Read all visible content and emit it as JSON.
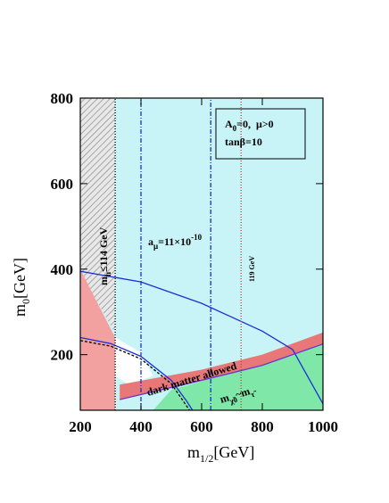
{
  "chart_data": {
    "type": "region",
    "xlabel": [
      "m",
      "1/2",
      "[GeV]"
    ],
    "ylabel": [
      "m",
      "0",
      "[GeV]"
    ],
    "xlim": [
      200,
      1000
    ],
    "xticks": [
      200,
      400,
      600,
      800,
      1000
    ],
    "ylim": [
      70,
      800
    ],
    "yticks": [
      200,
      400,
      600,
      800
    ],
    "box_text": [
      [
        "A",
        "0",
        "=0,  μ>0"
      ],
      [
        "tanβ=10"
      ]
    ],
    "annotations": {
      "mh": [
        "m",
        "h",
        "≤114 GeV"
      ],
      "amu": [
        "a",
        "μ",
        "=11×10",
        "-10"
      ],
      "h119": "119 GeV",
      "dm": "dark matter allowed",
      "coann": [
        "m",
        "χ̃",
        "0",
        "~m",
        "τ̃"
      ]
    },
    "regions": [
      {
        "color": "#c8f4f8",
        "x": [
          200,
          1000,
          1000,
          200
        ],
        "y": [
          70,
          70,
          800,
          800
        ]
      },
      {
        "color": "#ffffff",
        "x": [
          315,
          315,
          400,
          440,
          360
        ],
        "y": [
          150,
          240,
          205,
          150,
          130
        ]
      },
      {
        "color": "#f2a0a0",
        "x": [
          200,
          315,
          315,
          250,
          200
        ],
        "y": [
          70,
          70,
          240,
          330,
          410
        ]
      },
      {
        "color": "#b8b8b8",
        "pattern": "hatch",
        "x": [
          200,
          250,
          315,
          315,
          200
        ],
        "y": [
          400,
          330,
          250,
          800,
          800
        ]
      },
      {
        "color": "#7fe8a8",
        "x": [
          440,
          1000,
          1000,
          900,
          700,
          500
        ],
        "y": [
          70,
          70,
          228,
          198,
          158,
          118
        ]
      },
      {
        "color": "#e87878",
        "x": [
          330,
          600,
          800,
          1000,
          1000,
          800,
          600,
          330
        ],
        "y": [
          130,
          165,
          200,
          252,
          225,
          175,
          140,
          95
        ]
      }
    ],
    "lines": [
      {
        "color": "#1a2fd6",
        "dash": "solid",
        "x": [
          200,
          400,
          600,
          800,
          900,
          1000
        ],
        "y": [
          395,
          370,
          320,
          255,
          212,
          85
        ]
      },
      {
        "color": "#1a2fd6",
        "dash": "solid",
        "x": [
          200,
          300,
          400,
          500,
          550,
          570
        ],
        "y": [
          240,
          226,
          196,
          140,
          92,
          70
        ]
      },
      {
        "color": "#000000",
        "dash": "3,2",
        "x": [
          200,
          300,
          400,
          500,
          560
        ],
        "y": [
          233,
          220,
          190,
          132,
          70
        ]
      },
      {
        "color": "#000000",
        "dash": "1,2",
        "x": [
          315,
          315
        ],
        "y": [
          70,
          800
        ]
      },
      {
        "color": "#1a2fd6",
        "dash": "5,2,1,2",
        "x": [
          400,
          400
        ],
        "y": [
          70,
          800
        ]
      },
      {
        "color": "#1a2fd6",
        "dash": "5,2,1,2",
        "x": [
          630,
          630
        ],
        "y": [
          70,
          800
        ]
      },
      {
        "color": "#b04040",
        "dash": "1,2",
        "x": [
          730,
          730
        ],
        "y": [
          70,
          800
        ]
      },
      {
        "color": "#7030d0",
        "dash": "solid",
        "x": [
          330,
          600,
          800,
          1000
        ],
        "y": [
          95,
          140,
          175,
          225
        ]
      }
    ]
  }
}
